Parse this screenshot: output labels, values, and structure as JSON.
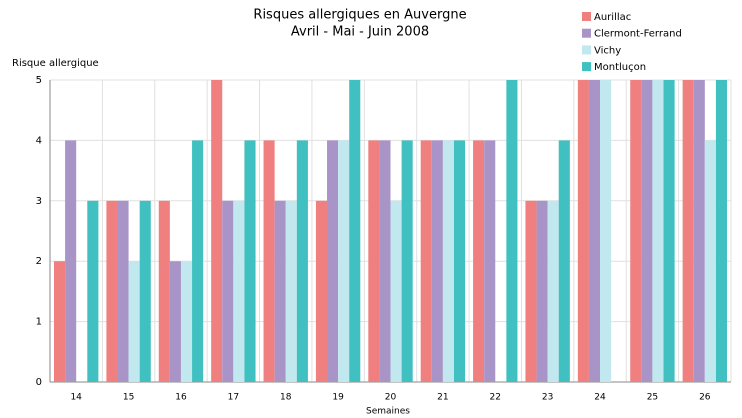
{
  "chart_data": {
    "type": "bar",
    "title": "Risques allergiques en Auvergne",
    "subtitle": "Avril - Mai - Juin 2008",
    "y_label": "Risque allergique",
    "x_label": "Semaines",
    "categories": [
      "14",
      "15",
      "16",
      "17",
      "18",
      "19",
      "20",
      "21",
      "22",
      "23",
      "24",
      "25",
      "26"
    ],
    "series": [
      {
        "name": "Aurillac",
        "color": "#f08080",
        "values": [
          2,
          3,
          3,
          5,
          4,
          3,
          4,
          4,
          4,
          3,
          5,
          5,
          5
        ]
      },
      {
        "name": "Clermont-Ferrand",
        "color": "#a994c8",
        "values": [
          4,
          3,
          2,
          3,
          3,
          4,
          4,
          4,
          4,
          3,
          5,
          5,
          5
        ]
      },
      {
        "name": "Vichy",
        "color": "#c2e8ef",
        "values": [
          0,
          2,
          2,
          3,
          3,
          4,
          3,
          4,
          0,
          3,
          5,
          5,
          4
        ]
      },
      {
        "name": "Montluçon",
        "color": "#40c0c0",
        "values": [
          3,
          3,
          4,
          4,
          4,
          5,
          4,
          4,
          5,
          4,
          0,
          5,
          5
        ]
      }
    ],
    "ylim": [
      0,
      5
    ],
    "yticks": [
      0,
      1,
      2,
      3,
      4,
      5
    ],
    "grid": true
  }
}
